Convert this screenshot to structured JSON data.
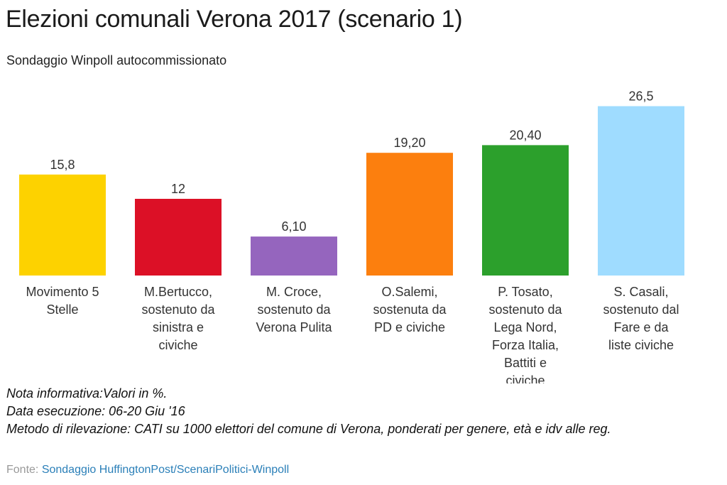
{
  "title": "Elezioni comunali Verona 2017 (scenario 1)",
  "subtitle": "Sondaggio Winpoll autocommissionato",
  "chart_data": {
    "type": "bar",
    "title": "Elezioni comunali Verona 2017 (scenario 1)",
    "subtitle": "Sondaggio Winpoll autocommissionato",
    "xlabel": "",
    "ylabel": "",
    "ylim": [
      0,
      30
    ],
    "grid": false,
    "categories": [
      [
        "Movimento 5",
        "Stelle"
      ],
      [
        "M.Bertucco,",
        "sostenuto da",
        "sinistra e",
        "civiche"
      ],
      [
        "M. Croce,",
        "sostenuto da",
        "Verona Pulita"
      ],
      [
        "O.Salemi,",
        "sostenuta da",
        "PD e civiche"
      ],
      [
        "P. Tosato,",
        "sostenuto da",
        "Lega Nord,",
        "Forza Italia,",
        "Battiti e",
        "civiche"
      ],
      [
        "S. Casali,",
        "sostenuto dal",
        "Fare e da",
        "liste civiche"
      ]
    ],
    "values": [
      15.8,
      12,
      6.1,
      19.2,
      20.4,
      26.5
    ],
    "data_labels": [
      "15,8",
      "12",
      "6,10",
      "19,20",
      "20,40",
      "26,5"
    ],
    "colors": [
      "#FDD200",
      "#DC1026",
      "#9565BE",
      "#FC7F0E",
      "#2CA02C",
      "#9FDCFF"
    ]
  },
  "notes": [
    "Nota informativa:Valori in %.",
    "Data esecuzione: 06-20 Giu '16",
    "Metodo di rilevazione: CATI su 1000 elettori del comune di Verona, ponderati per genere, età e idv alle reg."
  ],
  "source": {
    "label": "Fonte: ",
    "link_text": "Sondaggio HuffingtonPost/ScenariPolitici-Winpoll"
  }
}
